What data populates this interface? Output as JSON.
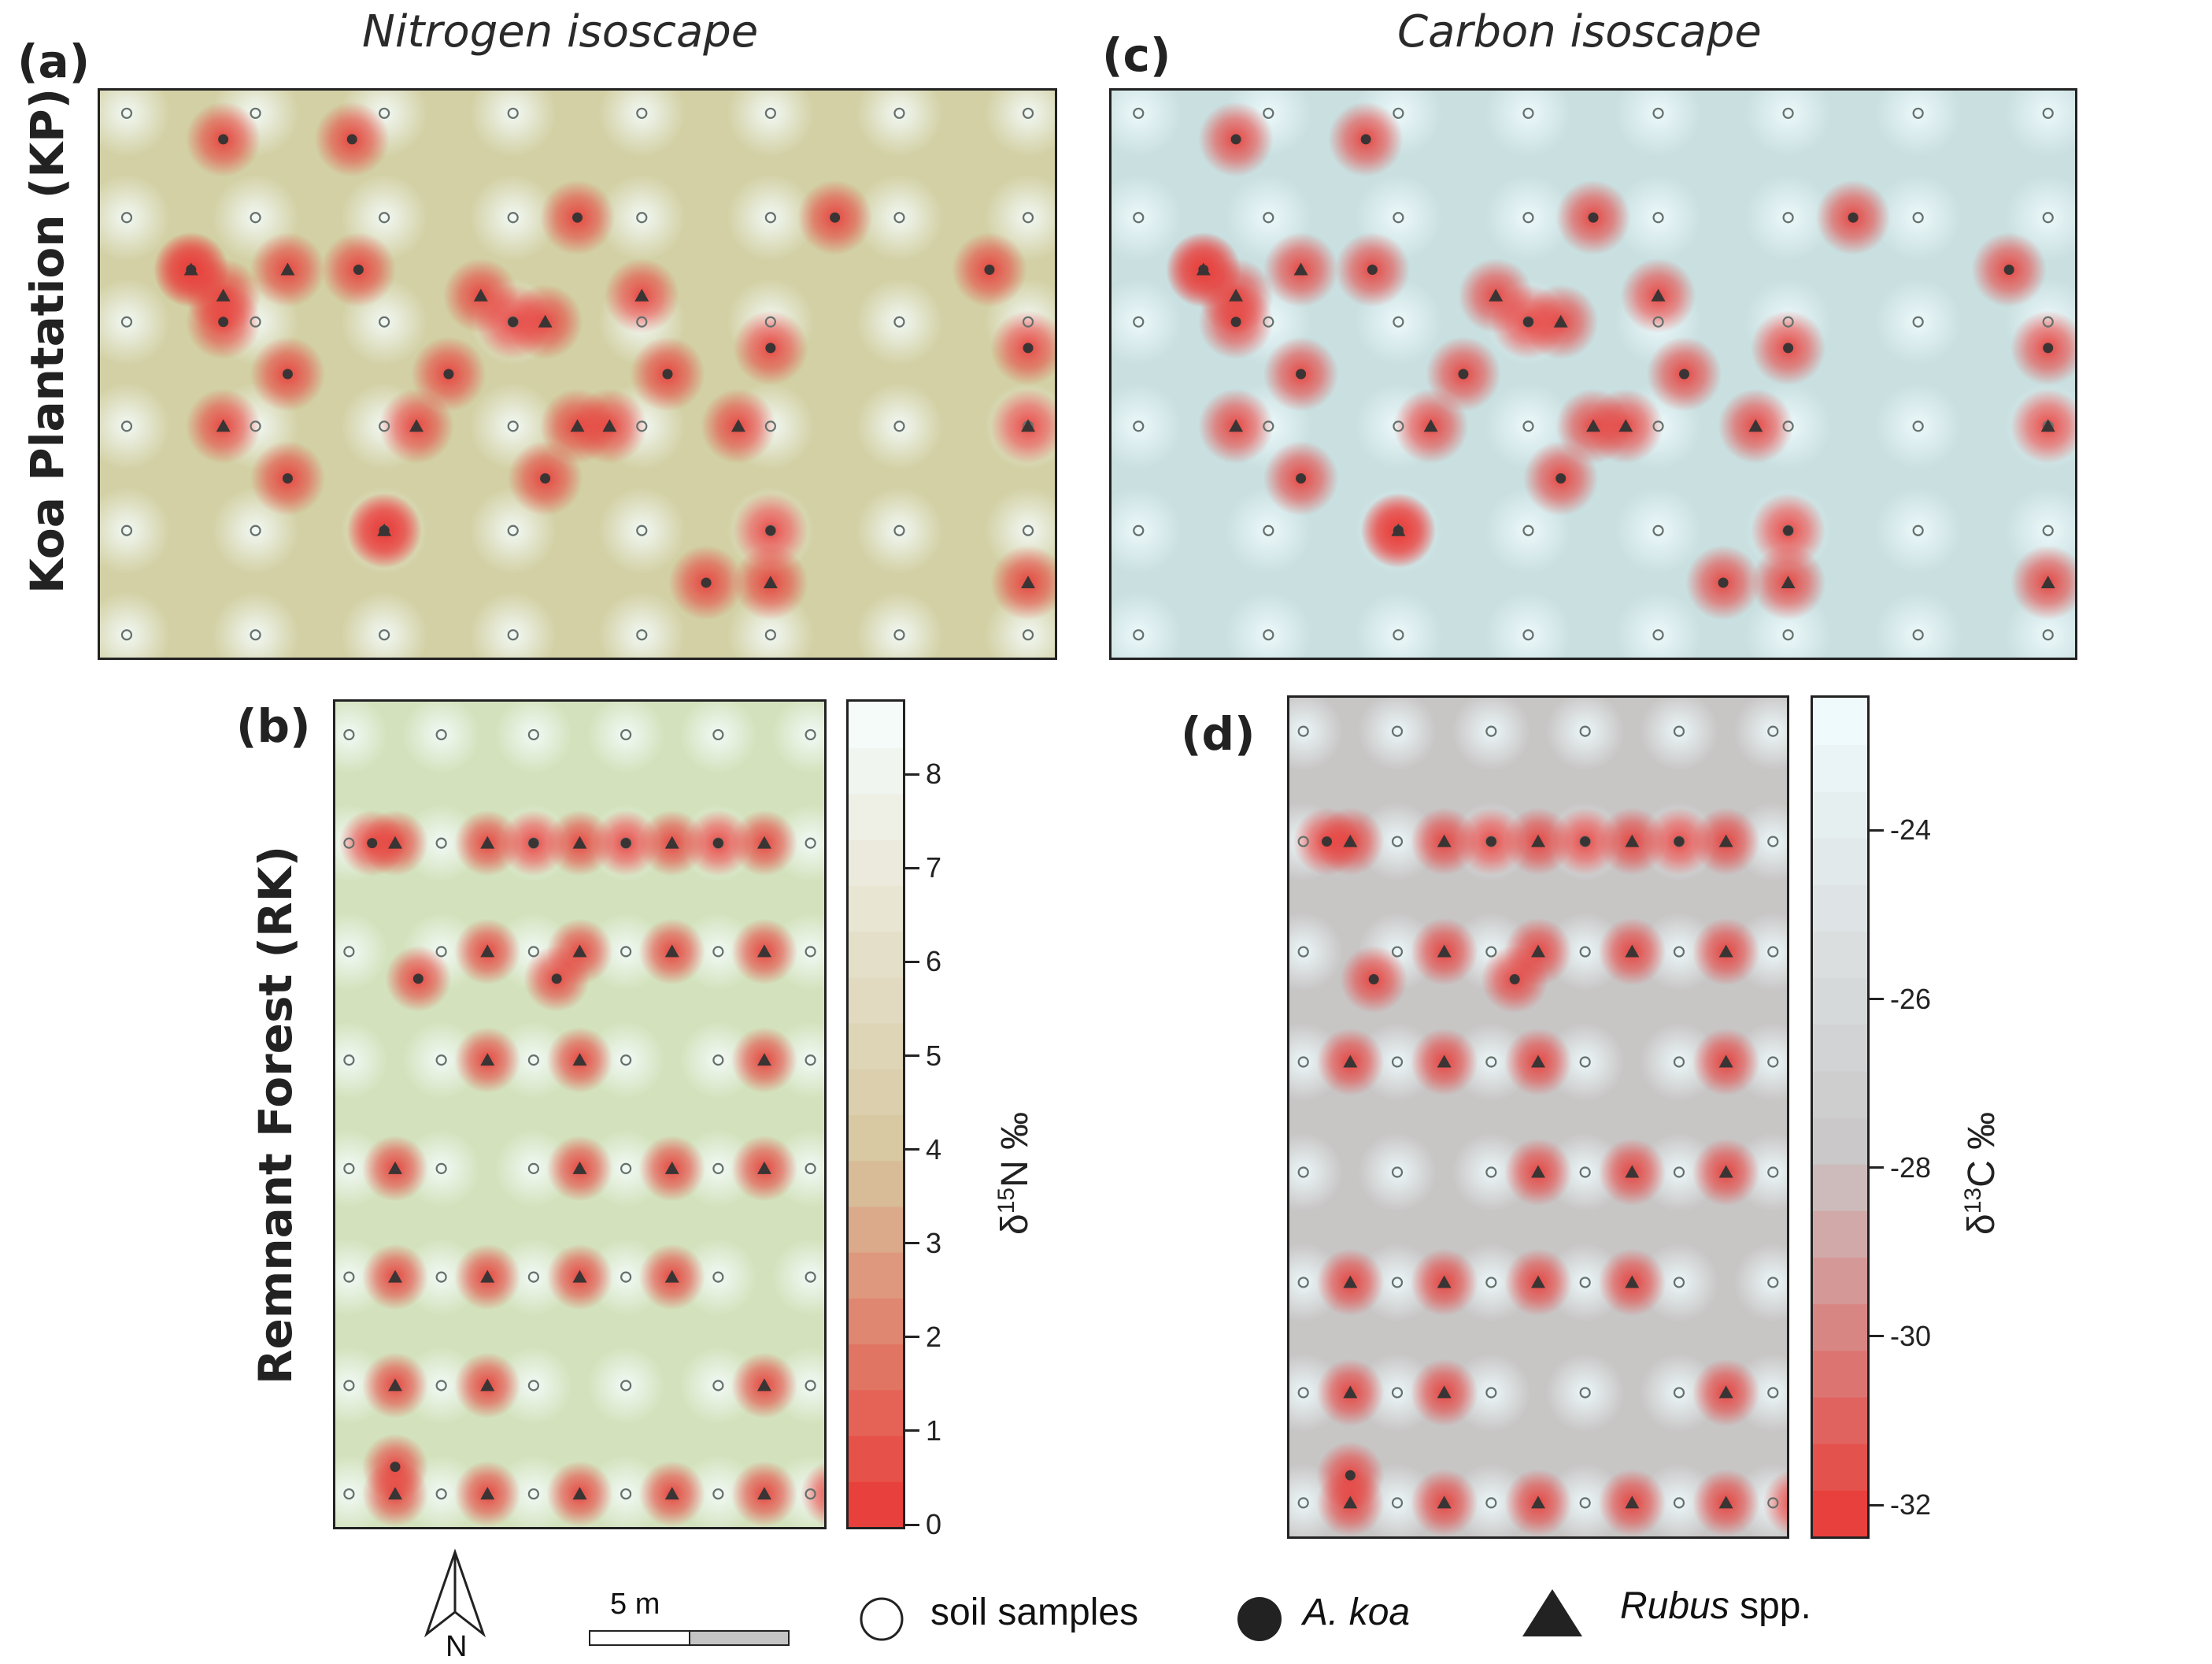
{
  "figure": {
    "row_labels": [
      "Koa Plantation (KP)",
      "Remnant Forest (RK)"
    ],
    "panel_labels": [
      "(a)",
      "(b)",
      "(c)",
      "(d)"
    ],
    "titles": [
      "Nitrogen isoscape",
      "Carbon isoscape"
    ]
  },
  "colors": {
    "nitrogen_low": "#e8403c",
    "nitrogen_mid": "#d7c7a0",
    "nitrogen_high": "#f4fbf9",
    "carbon_low": "#e8403c",
    "carbon_mid": "#c9c6c6",
    "carbon_high": "#eefafc",
    "nitrogen_background_kp": "#d2d0a4",
    "nitrogen_background_rk": "#d3e2bd",
    "carbon_background_kp": "#c9dfe0",
    "carbon_background_rk": "#c8c5c5"
  },
  "colorbars": [
    {
      "title_main": "δ",
      "title_sup": "15",
      "title_rest": "N  ‰",
      "ticks": [
        "0",
        "1",
        "2",
        "3",
        "4",
        "5",
        "6",
        "7",
        "8"
      ],
      "tick_values": [
        0,
        1,
        2,
        3,
        4,
        5,
        6,
        7,
        8
      ],
      "range": [
        -0.05,
        8.8
      ]
    },
    {
      "title_main": "δ",
      "title_sup": "13",
      "title_rest": "C  ‰",
      "ticks": [
        "-32",
        "-30",
        "-28",
        "-26",
        "-24"
      ],
      "tick_values": [
        -32,
        -30,
        -28,
        -26,
        -24
      ],
      "range": [
        -32.4,
        -22.4
      ]
    }
  ],
  "legend": {
    "north": "N",
    "scale": "5 m",
    "soil": "soil samples",
    "koa": "A. koa",
    "rubus_italic": "Rubus",
    "rubus_rest": " spp."
  },
  "chart_data": [
    {
      "type": "heatmap",
      "panel": "(a)",
      "title": "Nitrogen isoscape",
      "site": "Koa Plantation (KP)",
      "variable": "δ15N ‰",
      "grid": {
        "columns": 8,
        "rows": 6,
        "spacing_m": 2.5
      },
      "soil_samples": "all 8 × 6 grid nodes",
      "akoa": [
        [
          0.5,
          1.5
        ],
        [
          1.8,
          1.5
        ],
        [
          2.5,
          2.5
        ],
        [
          4.2,
          2.5
        ],
        [
          4.5,
          4.5
        ],
        [
          2.0,
          4.0
        ],
        [
          1.25,
          3.5
        ],
        [
          3.25,
          3.5
        ],
        [
          1.25,
          2.5
        ],
        [
          5.0,
          2.25
        ],
        [
          5.5,
          1.0
        ],
        [
          5.0,
          4.0
        ],
        [
          3.5,
          1.0
        ],
        [
          3.0,
          2.0
        ],
        [
          0.75,
          2.0
        ],
        [
          0.75,
          0.25
        ],
        [
          1.75,
          0.25
        ],
        [
          7.0,
          2.25
        ],
        [
          6.7,
          1.5
        ]
      ],
      "rubus": [
        [
          0.75,
          3.0
        ],
        [
          0.75,
          1.75
        ],
        [
          0.5,
          1.5
        ],
        [
          1.25,
          1.5
        ],
        [
          2.0,
          4.0
        ],
        [
          3.5,
          3.0
        ],
        [
          3.75,
          3.0
        ],
        [
          2.75,
          1.75
        ],
        [
          2.25,
          3.0
        ],
        [
          3.25,
          2.0
        ],
        [
          4.0,
          1.75
        ],
        [
          4.75,
          3.0
        ],
        [
          5.0,
          4.5
        ],
        [
          7.0,
          3.0
        ],
        [
          7.0,
          4.5
        ]
      ],
      "value_range": [
        -0.05,
        8.8
      ]
    },
    {
      "type": "heatmap",
      "panel": "(b)",
      "title": "",
      "site": "Remnant Forest (RK)",
      "variable": "δ15N ‰",
      "grid": {
        "columns": 6,
        "rows": 8,
        "spacing_m": 2.5
      },
      "soil_samples": "all 6 × 8 grid nodes",
      "akoa": [
        [
          0.25,
          1.0
        ],
        [
          2.0,
          1.0
        ],
        [
          3.0,
          1.0
        ],
        [
          4.0,
          1.0
        ],
        [
          0.75,
          2.25
        ],
        [
          2.25,
          2.25
        ],
        [
          5.25,
          7.75
        ],
        [
          5.25,
          7.0
        ],
        [
          0.5,
          6.75
        ]
      ],
      "rubus": [
        [
          0.5,
          1.0
        ],
        [
          1.5,
          1.0
        ],
        [
          2.5,
          1.0
        ],
        [
          3.5,
          1.0
        ],
        [
          4.5,
          1.0
        ],
        [
          1.5,
          2.0
        ],
        [
          2.5,
          2.0
        ],
        [
          3.5,
          2.0
        ],
        [
          4.5,
          2.0
        ],
        [
          1.5,
          3.0
        ],
        [
          2.5,
          3.0
        ],
        [
          4.5,
          3.0
        ],
        [
          0.5,
          4.0
        ],
        [
          2.5,
          4.0
        ],
        [
          3.5,
          4.0
        ],
        [
          4.5,
          4.0
        ],
        [
          0.5,
          5.0
        ],
        [
          1.5,
          5.0
        ],
        [
          2.5,
          5.0
        ],
        [
          3.5,
          5.0
        ],
        [
          0.5,
          6.0
        ],
        [
          1.5,
          6.0
        ],
        [
          4.5,
          6.0
        ],
        [
          0.5,
          7.0
        ],
        [
          1.5,
          7.0
        ],
        [
          2.5,
          7.0
        ],
        [
          3.5,
          7.0
        ],
        [
          4.5,
          7.0
        ]
      ],
      "value_range": [
        -0.05,
        8.8
      ]
    },
    {
      "type": "heatmap",
      "panel": "(c)",
      "title": "Carbon isoscape",
      "site": "Koa Plantation (KP)",
      "variable": "δ13C ‰",
      "grid": {
        "columns": 8,
        "rows": 6,
        "spacing_m": 2.5
      },
      "soil_samples": "all 8 × 6 grid nodes",
      "akoa": [
        [
          0.5,
          1.5
        ],
        [
          1.8,
          1.5
        ],
        [
          2.5,
          2.5
        ],
        [
          4.2,
          2.5
        ],
        [
          4.5,
          4.5
        ],
        [
          2.0,
          4.0
        ],
        [
          1.25,
          3.5
        ],
        [
          3.25,
          3.5
        ],
        [
          1.25,
          2.5
        ],
        [
          5.0,
          2.25
        ],
        [
          5.5,
          1.0
        ],
        [
          5.0,
          4.0
        ],
        [
          3.5,
          1.0
        ],
        [
          3.0,
          2.0
        ],
        [
          0.75,
          2.0
        ],
        [
          0.75,
          0.25
        ],
        [
          1.75,
          0.25
        ],
        [
          7.0,
          2.25
        ],
        [
          6.7,
          1.5
        ]
      ],
      "rubus": [
        [
          0.75,
          3.0
        ],
        [
          0.75,
          1.75
        ],
        [
          0.5,
          1.5
        ],
        [
          1.25,
          1.5
        ],
        [
          2.0,
          4.0
        ],
        [
          3.5,
          3.0
        ],
        [
          3.75,
          3.0
        ],
        [
          2.75,
          1.75
        ],
        [
          2.25,
          3.0
        ],
        [
          3.25,
          2.0
        ],
        [
          4.0,
          1.75
        ],
        [
          4.75,
          3.0
        ],
        [
          5.0,
          4.5
        ],
        [
          7.0,
          3.0
        ],
        [
          7.0,
          4.5
        ]
      ],
      "value_range": [
        -32.4,
        -22.4
      ]
    },
    {
      "type": "heatmap",
      "panel": "(d)",
      "title": "",
      "site": "Remnant Forest (RK)",
      "variable": "δ13C ‰",
      "grid": {
        "columns": 6,
        "rows": 8,
        "spacing_m": 2.5
      },
      "soil_samples": "all 6 × 8 grid nodes",
      "akoa": [
        [
          0.25,
          1.0
        ],
        [
          2.0,
          1.0
        ],
        [
          3.0,
          1.0
        ],
        [
          4.0,
          1.0
        ],
        [
          0.75,
          2.25
        ],
        [
          2.25,
          2.25
        ],
        [
          5.25,
          7.75
        ],
        [
          5.25,
          7.0
        ],
        [
          0.5,
          6.75
        ]
      ],
      "rubus": [
        [
          0.5,
          1.0
        ],
        [
          1.5,
          1.0
        ],
        [
          2.5,
          1.0
        ],
        [
          3.5,
          1.0
        ],
        [
          4.5,
          1.0
        ],
        [
          1.5,
          2.0
        ],
        [
          2.5,
          2.0
        ],
        [
          3.5,
          2.0
        ],
        [
          4.5,
          2.0
        ],
        [
          0.5,
          3.0
        ],
        [
          1.5,
          3.0
        ],
        [
          2.5,
          3.0
        ],
        [
          4.5,
          3.0
        ],
        [
          2.5,
          4.0
        ],
        [
          3.5,
          4.0
        ],
        [
          4.5,
          4.0
        ],
        [
          0.5,
          5.0
        ],
        [
          1.5,
          5.0
        ],
        [
          2.5,
          5.0
        ],
        [
          3.5,
          5.0
        ],
        [
          0.5,
          6.0
        ],
        [
          1.5,
          6.0
        ],
        [
          4.5,
          6.0
        ],
        [
          0.5,
          7.0
        ],
        [
          1.5,
          7.0
        ],
        [
          2.5,
          7.0
        ],
        [
          3.5,
          7.0
        ],
        [
          4.5,
          7.0
        ]
      ],
      "value_range": [
        -32.4,
        -22.4
      ]
    }
  ]
}
